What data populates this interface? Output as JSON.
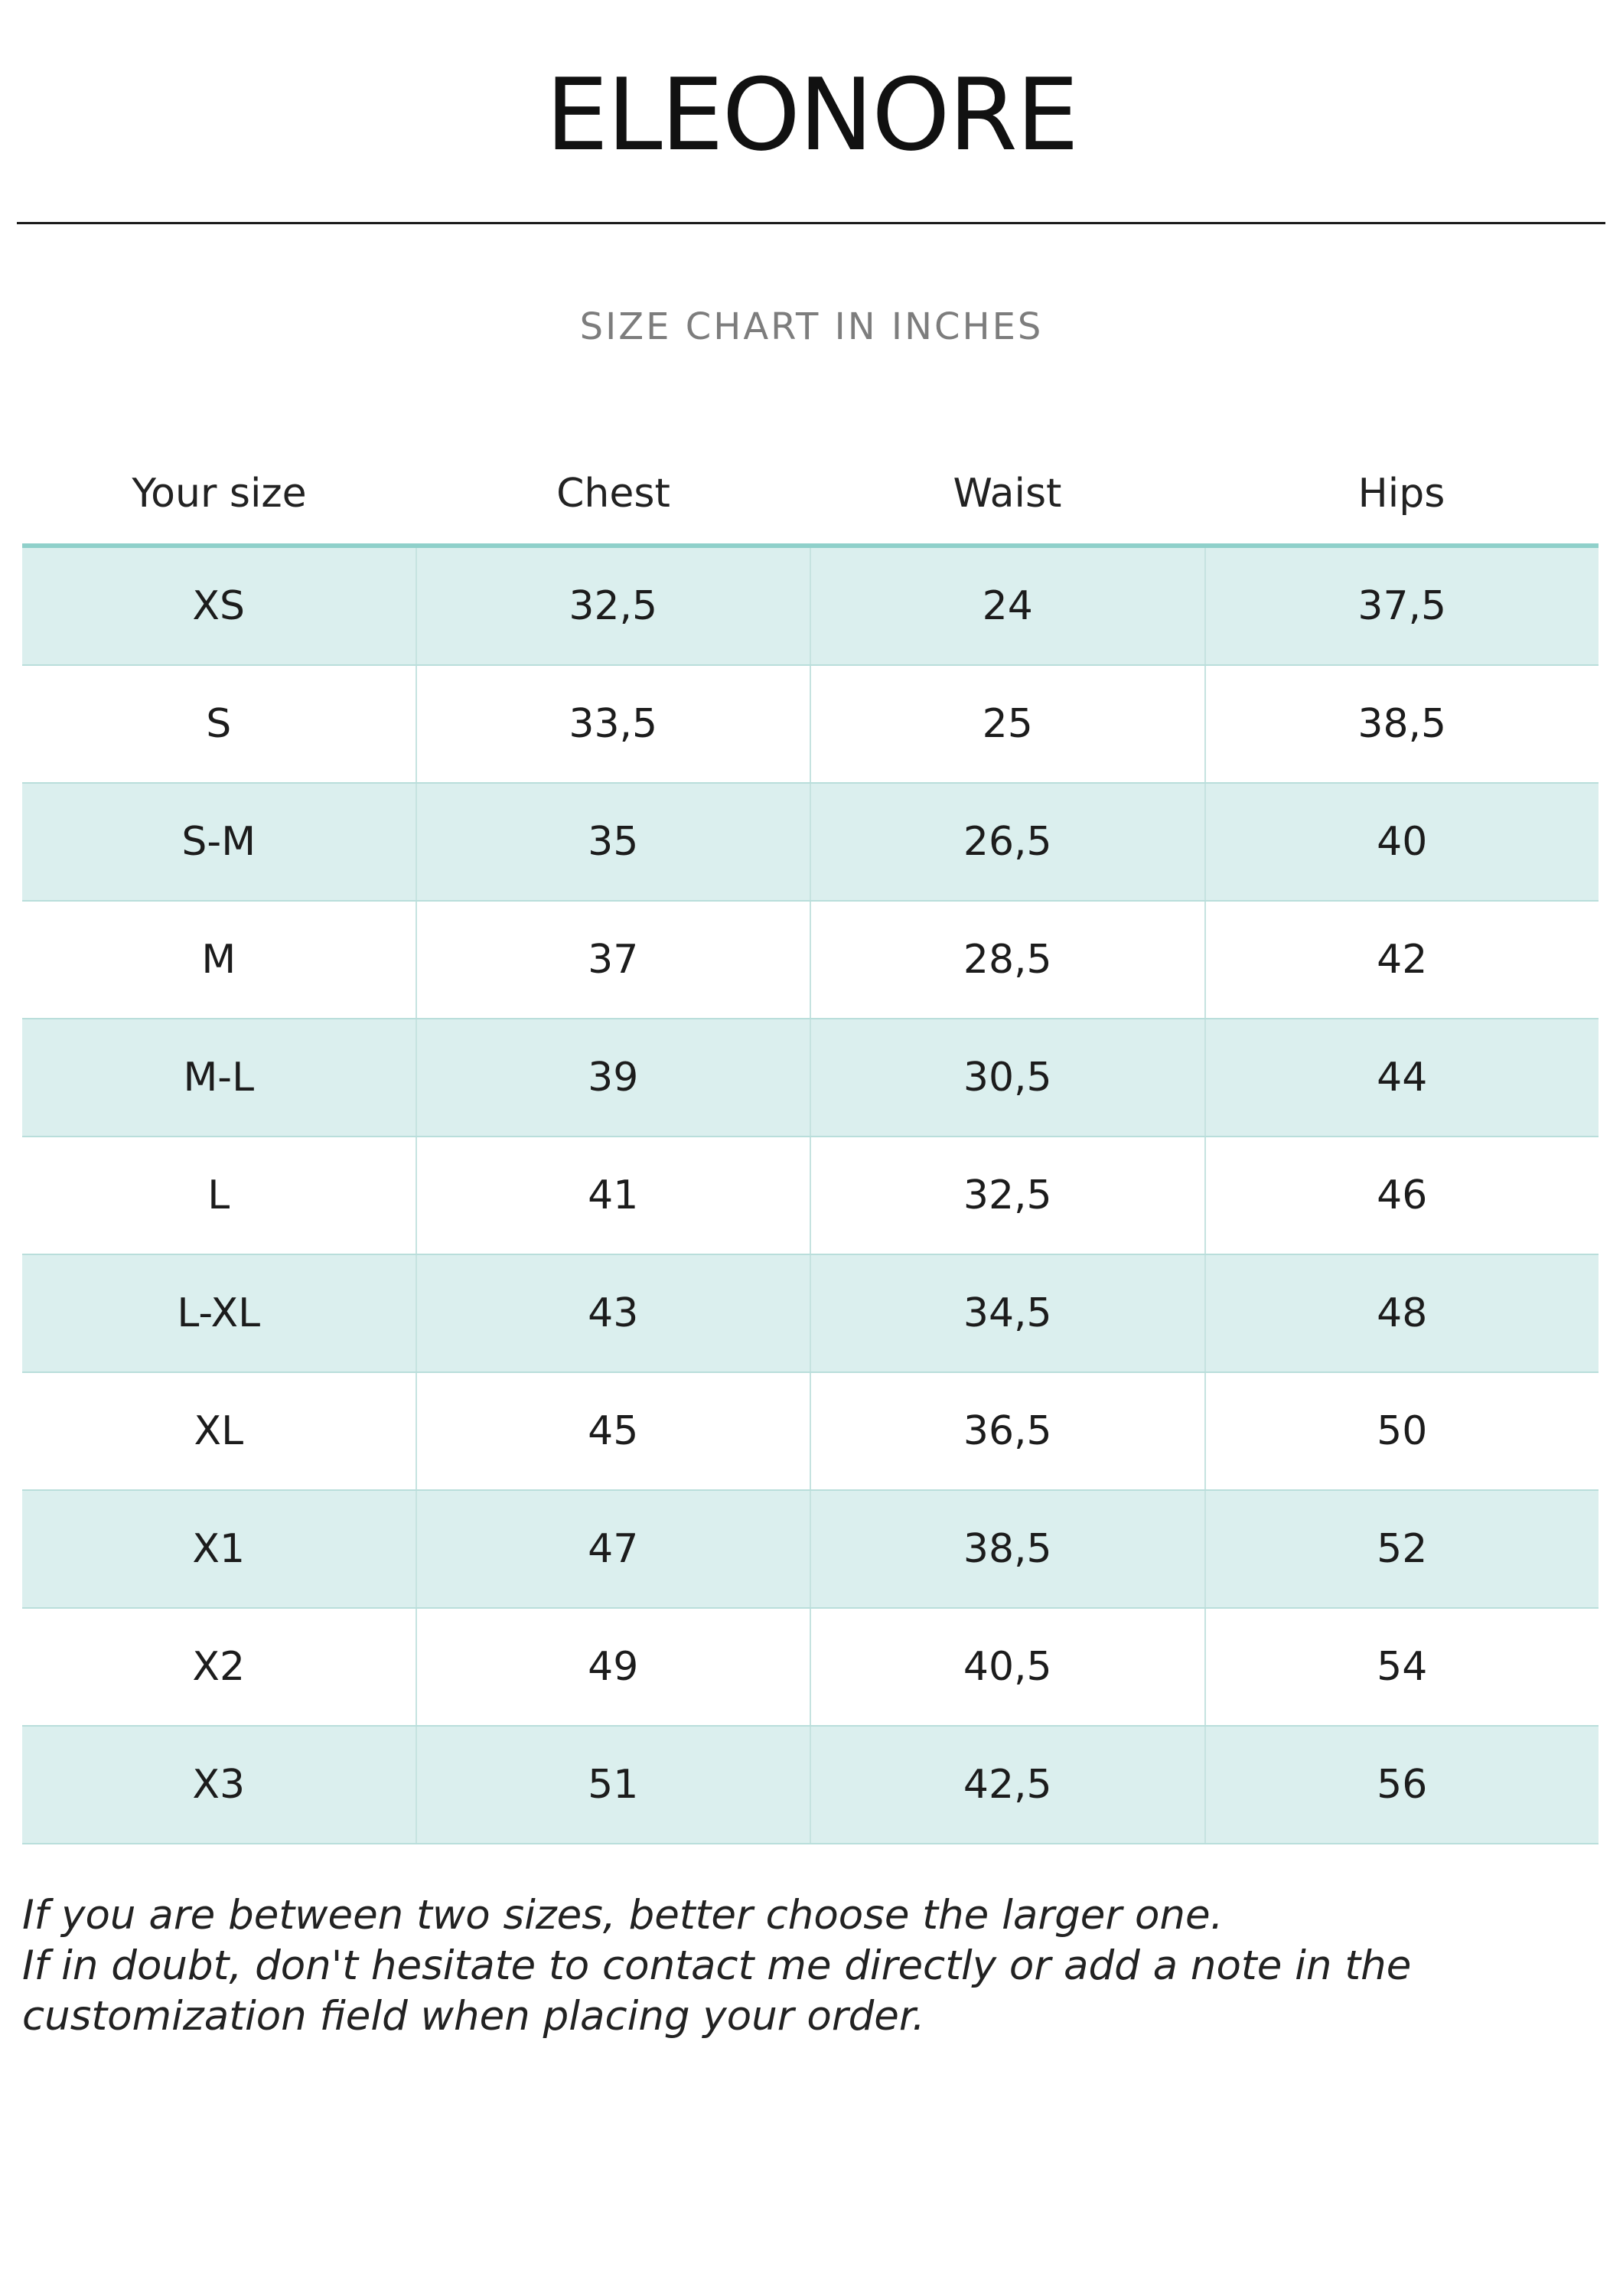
{
  "brand": "ELEONORE",
  "subtitle": "SIZE CHART IN INCHES",
  "table": {
    "headers": [
      "Your size",
      "Chest",
      "Waist",
      "Hips"
    ],
    "rows": [
      [
        "XS",
        "32,5",
        "24",
        "37,5"
      ],
      [
        "S",
        "33,5",
        "25",
        "38,5"
      ],
      [
        "S-M",
        "35",
        "26,5",
        "40"
      ],
      [
        "M",
        "37",
        "28,5",
        "42"
      ],
      [
        "M-L",
        "39",
        "30,5",
        "44"
      ],
      [
        "L",
        "41",
        "32,5",
        "46"
      ],
      [
        "L-XL",
        "43",
        "34,5",
        "48"
      ],
      [
        "XL",
        "45",
        "36,5",
        "50"
      ],
      [
        "X1",
        "47",
        "38,5",
        "52"
      ],
      [
        "X2",
        "49",
        "40,5",
        "54"
      ],
      [
        "X3",
        "51",
        "42,5",
        "56"
      ]
    ]
  },
  "notes": [
    "If you are between two sizes, better choose the larger one.",
    "If in doubt, don't hesitate to contact me directly or add a note in the",
    "customization field when placing your order."
  ],
  "colors": {
    "row_shade": "#dbefee",
    "accent_rule": "#8fd0ca"
  }
}
